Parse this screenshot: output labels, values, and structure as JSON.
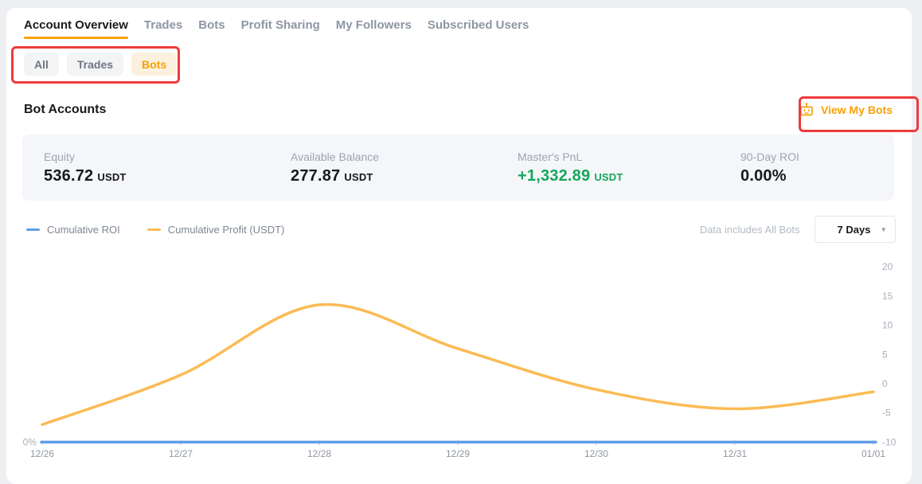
{
  "colors": {
    "accent": "#F8A105",
    "accent_soft": "#FCF1DE",
    "green": "#18A65B",
    "red": "#ED3B3B",
    "chart_blue": "#5F9DEA",
    "chart_orange": "#FBBB54"
  },
  "tabs": [
    {
      "label": "Account Overview",
      "active": true
    },
    {
      "label": "Trades",
      "active": false
    },
    {
      "label": "Bots",
      "active": false
    },
    {
      "label": "Profit Sharing",
      "active": false
    },
    {
      "label": "My Followers",
      "active": false
    },
    {
      "label": "Subscribed Users",
      "active": false
    }
  ],
  "filter_pills": [
    {
      "label": "All",
      "active": false
    },
    {
      "label": "Trades",
      "active": false
    },
    {
      "label": "Bots",
      "active": true
    }
  ],
  "section": {
    "title": "Bot Accounts",
    "view_my_bots_label": "View My Bots",
    "view_my_bots_icon": "robot-icon"
  },
  "stats": [
    {
      "label": "Equity",
      "value": "536.72",
      "unit": "USDT"
    },
    {
      "label": "Available Balance",
      "value": "277.87",
      "unit": "USDT"
    },
    {
      "label": "Master's PnL",
      "value": "+1,332.89",
      "unit": "USDT"
    },
    {
      "label": "90-Day ROI",
      "value": "0.00%",
      "unit": ""
    }
  ],
  "chart_controls": {
    "note": "Data includes All Bots",
    "range_selected": "7 Days",
    "range_icon": "chevron-down-icon",
    "caret": "▾"
  },
  "chart_data": {
    "type": "line",
    "x": [
      "12/26",
      "12/27",
      "12/28",
      "12/29",
      "12/30",
      "12/31",
      "01/01"
    ],
    "series": [
      {
        "name": "Cumulative ROI",
        "color": "#5F9DEA",
        "axis": "left",
        "unit": "%",
        "values": [
          0,
          0,
          0,
          0,
          0,
          0,
          0
        ]
      },
      {
        "name": "Cumulative Profit (USDT)",
        "color": "#FBBB54",
        "axis": "right",
        "values": [
          -7,
          1.5,
          13.5,
          6,
          -1,
          -4.3,
          -1.4
        ]
      }
    ],
    "right_axis": {
      "min": -10,
      "max": 20,
      "ticks": [
        20,
        15,
        10,
        5,
        0,
        -5,
        -10
      ]
    },
    "left_axis": {
      "ticks_shown": [
        "0%"
      ]
    },
    "legend_position": "top-left",
    "grid": false,
    "smooth": true
  },
  "annotations": {
    "color": "#ED3B3B",
    "boxes": [
      "filter-pill-group",
      "view-my-bots-button"
    ]
  }
}
